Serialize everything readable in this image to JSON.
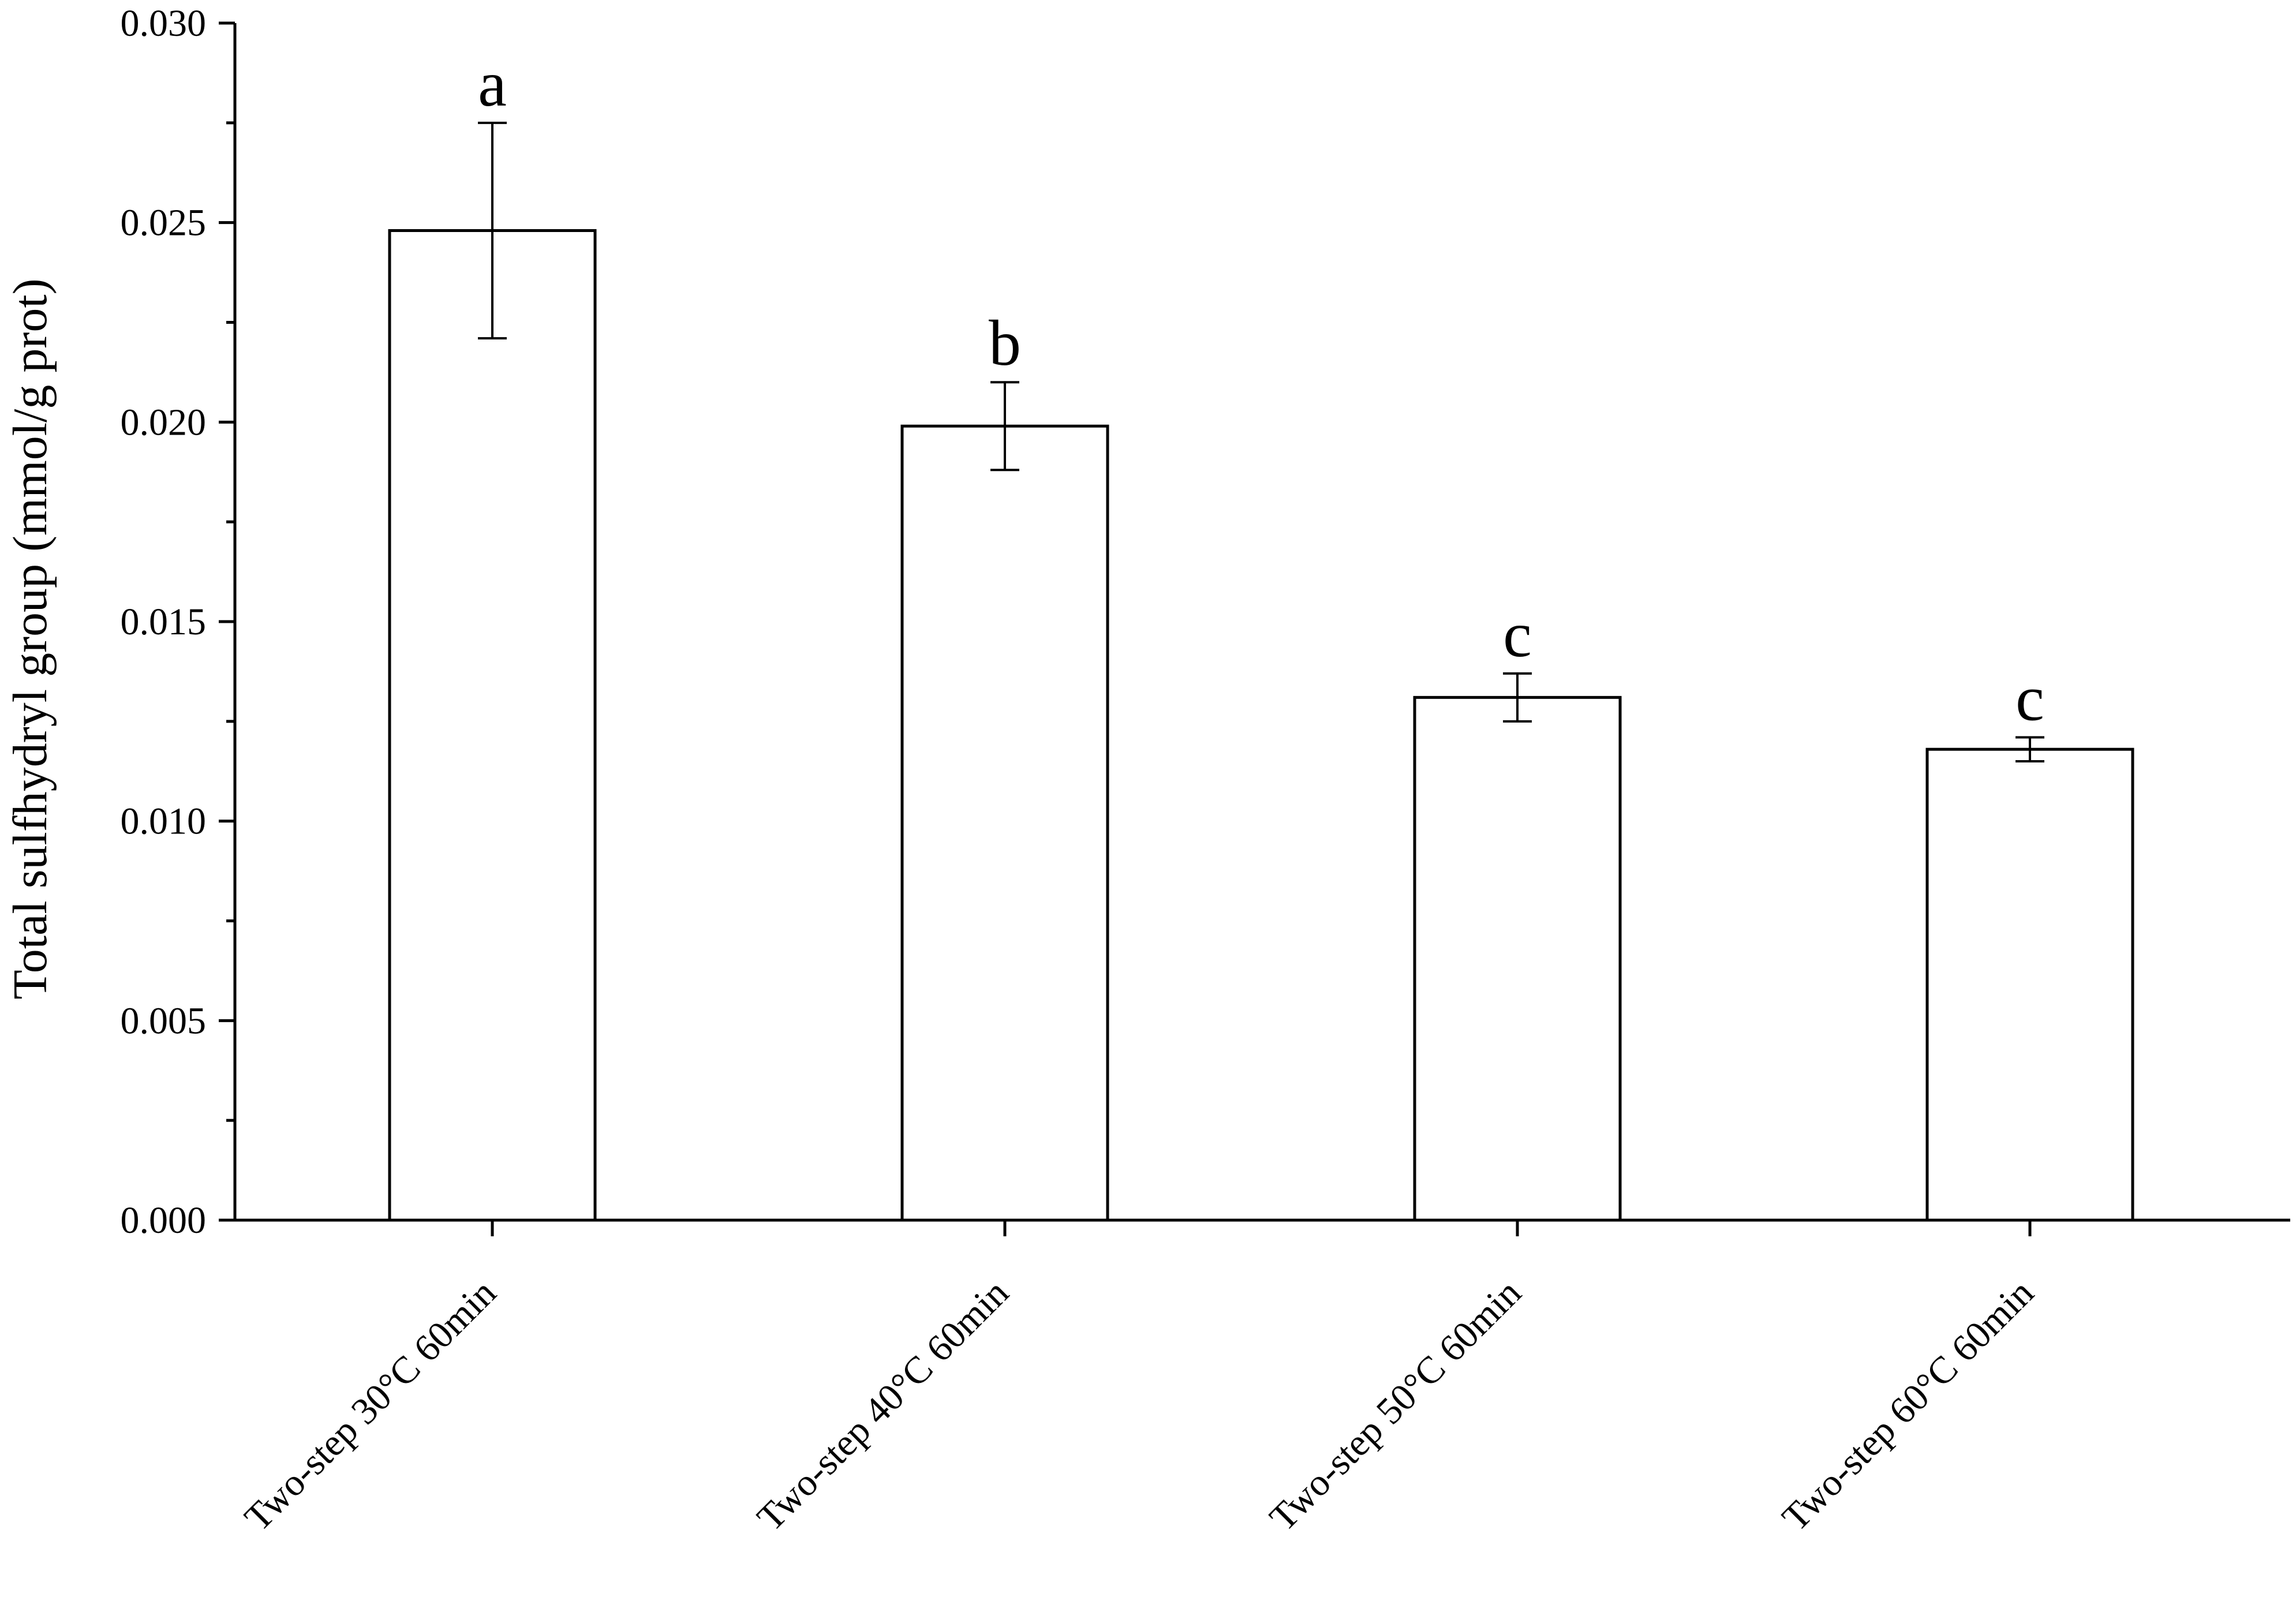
{
  "chart_data": {
    "type": "bar",
    "title": "",
    "xlabel": "",
    "ylabel": "Total sulfhydryl group (mmol/g prot)",
    "ylim": [
      0,
      0.03
    ],
    "yticks": [
      "0.000",
      "0.005",
      "0.010",
      "0.015",
      "0.020",
      "0.025",
      "0.030"
    ],
    "categories": [
      "Two-step 30°C 60min",
      "Two-step 40°C 60min",
      "Two-step 50°C 60min",
      "Two-step 60°C 60min"
    ],
    "values": [
      0.0248,
      0.0199,
      0.0131,
      0.0118
    ],
    "errors": [
      0.0027,
      0.0011,
      0.0006,
      0.0003
    ],
    "significance": [
      "a",
      "b",
      "c",
      "c"
    ],
    "grid": false,
    "legend": "none",
    "colors": {
      "bar_fill": "#ffffff",
      "bar_stroke": "#000000",
      "axis": "#000000"
    }
  }
}
